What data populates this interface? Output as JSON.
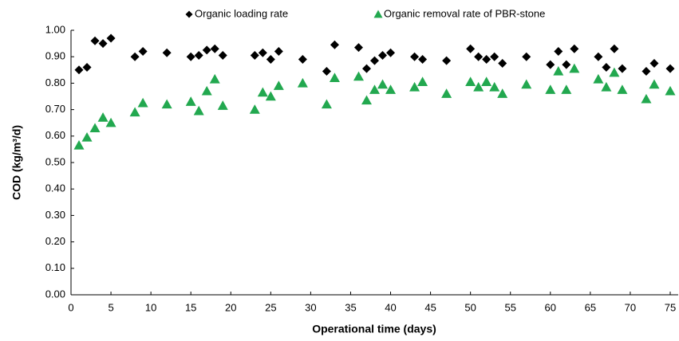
{
  "chart_data": {
    "type": "scatter",
    "x_label": "Operational time (days)",
    "y_label": "COD (kg/m³/d)",
    "x": [
      1,
      2,
      3,
      4,
      5,
      8,
      9,
      12,
      15,
      16,
      17,
      18,
      19,
      23,
      24,
      25,
      26,
      29,
      32,
      33,
      36,
      37,
      38,
      39,
      40,
      43,
      44,
      47,
      50,
      51,
      52,
      53,
      54,
      57,
      60,
      61,
      62,
      63,
      66,
      67,
      68,
      69,
      72,
      73,
      75
    ],
    "series": [
      {
        "name": "Organic loading rate",
        "color": "#000000",
        "marker": "diamond",
        "values": [
          0.85,
          0.86,
          0.96,
          0.95,
          0.97,
          0.9,
          0.92,
          0.915,
          0.9,
          0.905,
          0.925,
          0.93,
          0.905,
          0.905,
          0.915,
          0.89,
          0.92,
          0.89,
          0.845,
          0.945,
          0.935,
          0.855,
          0.885,
          0.905,
          0.915,
          0.9,
          0.89,
          0.885,
          0.93,
          0.9,
          0.89,
          0.9,
          0.875,
          0.9,
          0.87,
          0.92,
          0.87,
          0.93,
          0.9,
          0.86,
          0.93,
          0.855,
          0.845,
          0.875,
          0.855
        ]
      },
      {
        "name": "Organic removal rate of PBR-stone",
        "color": "#22a84f",
        "marker": "triangle",
        "values": [
          0.565,
          0.595,
          0.63,
          0.67,
          0.65,
          0.69,
          0.725,
          0.72,
          0.73,
          0.695,
          0.77,
          0.815,
          0.715,
          0.7,
          0.765,
          0.75,
          0.79,
          0.8,
          0.72,
          0.82,
          0.825,
          0.735,
          0.775,
          0.795,
          0.775,
          0.785,
          0.805,
          0.76,
          0.805,
          0.785,
          0.805,
          0.785,
          0.76,
          0.795,
          0.775,
          0.845,
          0.775,
          0.855,
          0.815,
          0.785,
          0.84,
          0.775,
          0.74,
          0.795,
          0.77
        ]
      }
    ],
    "xlim": [
      0,
      76
    ],
    "xticks": [
      0,
      5,
      10,
      15,
      20,
      25,
      30,
      35,
      40,
      45,
      50,
      55,
      60,
      65,
      70,
      75
    ],
    "ylim": [
      0,
      1
    ],
    "yticks": [
      {
        "value": 0,
        "label": "0.00"
      },
      {
        "value": 0.1,
        "label": "0.10"
      },
      {
        "value": 0.2,
        "label": "0.20"
      },
      {
        "value": 0.3,
        "label": "0.30"
      },
      {
        "value": 0.4,
        "label": "0.40"
      },
      {
        "value": 0.5,
        "label": "0.50"
      },
      {
        "value": 0.6,
        "label": "0.60"
      },
      {
        "value": 0.7,
        "label": "0.70"
      },
      {
        "value": 0.8,
        "label": "0.80"
      },
      {
        "value": 0.9,
        "label": "0.90"
      },
      {
        "value": 1,
        "label": "1.00"
      }
    ],
    "legend": "top"
  }
}
